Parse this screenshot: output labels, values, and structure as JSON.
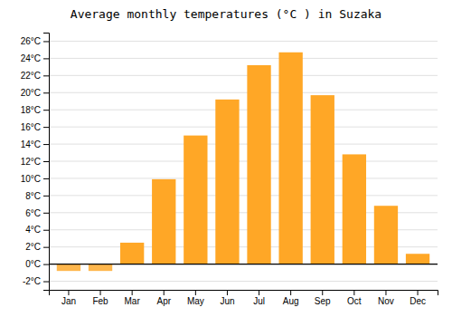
{
  "chart_data": {
    "type": "bar",
    "title": "Average monthly temperatures (°C ) in Suzaka",
    "categories": [
      "Jan",
      "Feb",
      "Mar",
      "Apr",
      "May",
      "Jun",
      "Jul",
      "Aug",
      "Sep",
      "Oct",
      "Nov",
      "Dec"
    ],
    "values": [
      -0.8,
      -0.8,
      2.5,
      9.9,
      15.0,
      19.2,
      23.2,
      24.7,
      19.7,
      12.8,
      6.8,
      1.2
    ],
    "colors": [
      "#FFB74D",
      "#FFB74D",
      "#FFA726",
      "#FFA726",
      "#FFA726",
      "#FFA726",
      "#FFA726",
      "#FFA726",
      "#FFA726",
      "#FFA726",
      "#FFA726",
      "#FFA726"
    ],
    "ylim": [
      -3,
      27
    ],
    "yticks": [
      {
        "value": -2,
        "label": "-2°C"
      },
      {
        "value": 0,
        "label": "0°C"
      },
      {
        "value": 2,
        "label": "2°C"
      },
      {
        "value": 4,
        "label": "4°C"
      },
      {
        "value": 6,
        "label": "6°C"
      },
      {
        "value": 8,
        "label": "8°C"
      },
      {
        "value": 10,
        "label": "10°C"
      },
      {
        "value": 12,
        "label": "12°C"
      },
      {
        "value": 14,
        "label": "14°C"
      },
      {
        "value": 16,
        "label": "16°C"
      },
      {
        "value": 18,
        "label": "18°C"
      },
      {
        "value": 20,
        "label": "20°C"
      },
      {
        "value": 22,
        "label": "22°C"
      },
      {
        "value": 24,
        "label": "24°C"
      },
      {
        "value": 26,
        "label": "26°C"
      }
    ],
    "grid": true
  }
}
